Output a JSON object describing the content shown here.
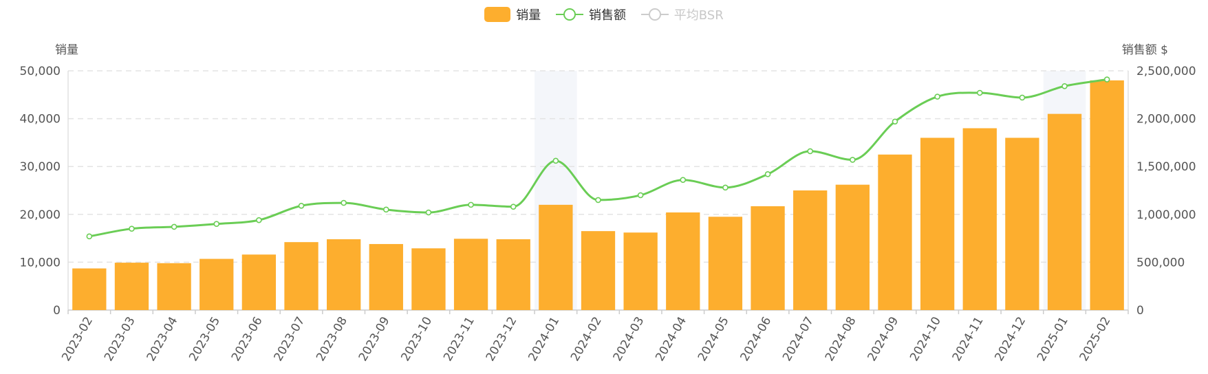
{
  "legend": {
    "bar_label": "销量",
    "line_label": "销售额",
    "disabled_label": "平均BSR"
  },
  "axes": {
    "left_title": "销量",
    "right_title": "销售额 $"
  },
  "colors": {
    "bar": "#FDAE2E",
    "line": "#6ACD55",
    "highlight": "#F4F6FA",
    "grid": "#E3E3E3",
    "axis_text": "#555555"
  },
  "chart_data": {
    "type": "bar",
    "categories": [
      "2023-02",
      "2023-03",
      "2023-04",
      "2023-05",
      "2023-06",
      "2023-07",
      "2023-08",
      "2023-09",
      "2023-10",
      "2023-11",
      "2023-12",
      "2024-01",
      "2024-02",
      "2024-03",
      "2024-04",
      "2024-05",
      "2024-06",
      "2024-07",
      "2024-08",
      "2024-09",
      "2024-10",
      "2024-11",
      "2024-12",
      "2025-01",
      "2025-02"
    ],
    "series": [
      {
        "name": "销量",
        "type": "bar",
        "axis": "left",
        "values": [
          8700,
          9900,
          9800,
          10700,
          11600,
          14200,
          14800,
          13800,
          12900,
          14900,
          14800,
          22000,
          16500,
          16200,
          20400,
          19500,
          21700,
          25000,
          26200,
          32500,
          36000,
          38000,
          36000,
          41000,
          48000
        ]
      },
      {
        "name": "销售额",
        "type": "line",
        "axis": "right",
        "values": [
          770000,
          850000,
          870000,
          900000,
          940000,
          1090000,
          1120000,
          1050000,
          1020000,
          1100000,
          1080000,
          1560000,
          1150000,
          1200000,
          1360000,
          1280000,
          1420000,
          1660000,
          1570000,
          1970000,
          2230000,
          2270000,
          2220000,
          2340000,
          2410000
        ]
      }
    ],
    "highlighted_categories": [
      "2024-01",
      "2025-01"
    ],
    "y_left": {
      "min": 0,
      "max": 50000,
      "ticks": [
        0,
        10000,
        20000,
        30000,
        40000,
        50000
      ],
      "tick_labels": [
        "0",
        "10,000",
        "20,000",
        "30,000",
        "40,000",
        "50,000"
      ]
    },
    "y_right": {
      "min": 0,
      "max": 2500000,
      "ticks": [
        0,
        500000,
        1000000,
        1500000,
        2000000,
        2500000
      ],
      "tick_labels": [
        "0",
        "500,000",
        "1,000,000",
        "1,500,000",
        "2,000,000",
        "2,500,000"
      ]
    },
    "grid": true,
    "legend_position": "top-center"
  }
}
